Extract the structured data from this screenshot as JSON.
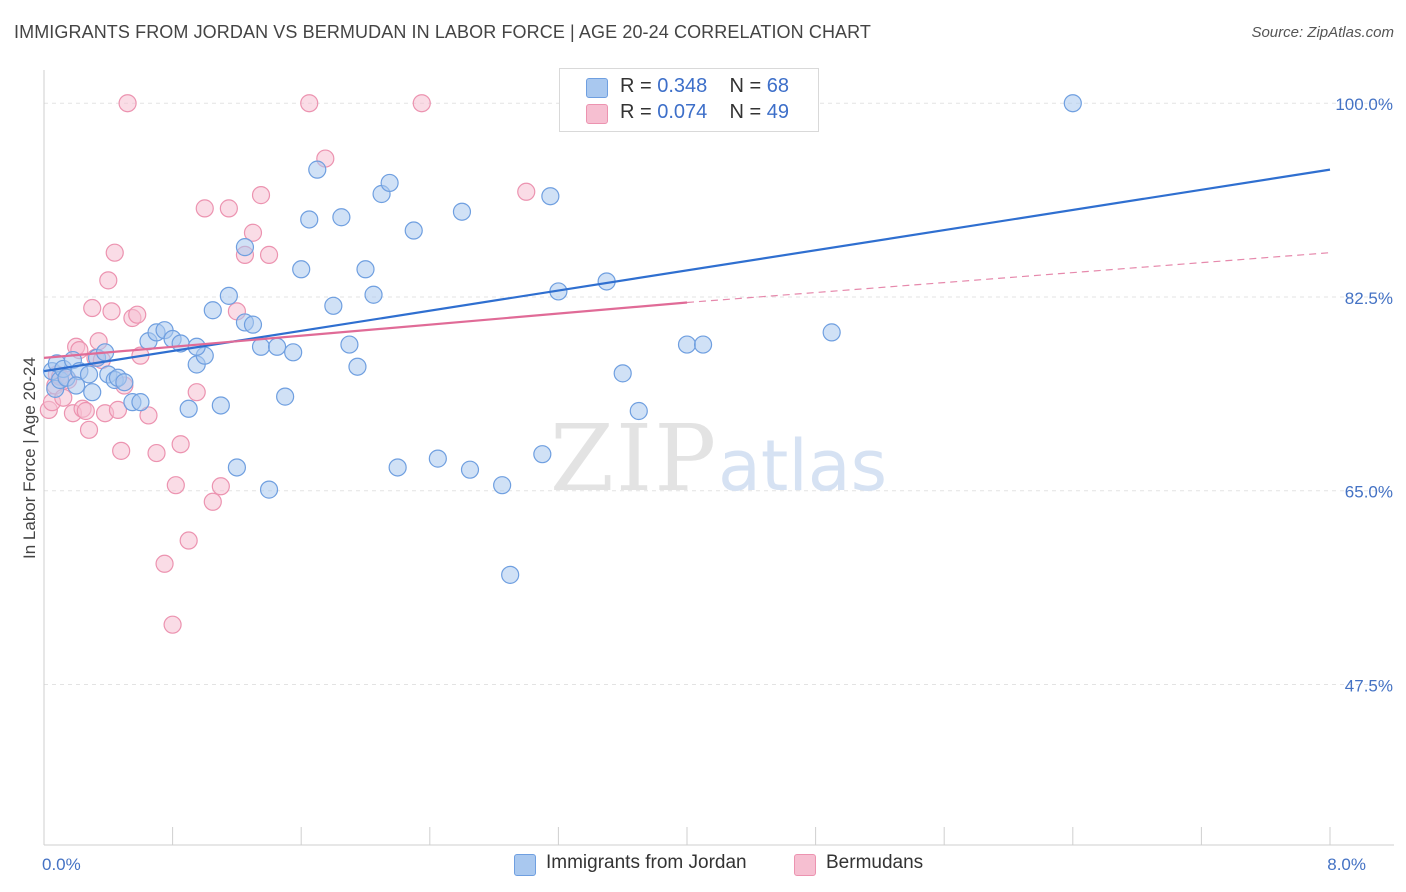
{
  "title": "IMMIGRANTS FROM JORDAN VS BERMUDAN IN LABOR FORCE | AGE 20-24 CORRELATION CHART",
  "source": "Source: ZipAtlas.com",
  "watermark": {
    "zip": "ZIP",
    "atlas": "atlas"
  },
  "legend_top": {
    "rows": [
      {
        "r_label": "R = ",
        "r_value": "0.348",
        "n_label": "N = ",
        "n_value": "68"
      },
      {
        "r_label": "R = ",
        "r_value": "0.074",
        "n_label": "N = ",
        "n_value": "49"
      }
    ]
  },
  "legend_bottom": [
    "Immigrants from Jordan",
    "Bermudans"
  ],
  "colors": {
    "jordan_fill": "#a9c8ef",
    "jordan_stroke": "#6f9fe0",
    "jordan_line": "#2f6fd0",
    "bermudan_fill": "#f6bfd1",
    "bermudan_stroke": "#ec93b0",
    "bermudan_line": "#e06b97",
    "grid": "#e3e3e3",
    "axis_text": "#4472c4"
  },
  "chart_data": {
    "type": "scatter",
    "xlabel": "",
    "ylabel": "In Labor Force | Age 20-24",
    "xlim": [
      0.0,
      8.0
    ],
    "ylim": [
      33.0,
      103.0
    ],
    "x_tick_labels": [
      "0.0%",
      "8.0%"
    ],
    "x_tick_values": [
      0.0,
      8.0
    ],
    "y_ticks": [
      100.0,
      82.5,
      65.0,
      47.5
    ],
    "y_tick_labels": [
      "100.0%",
      "82.5%",
      "65.0%",
      "47.5%"
    ],
    "series": [
      {
        "name": "Immigrants from Jordan",
        "r": 0.348,
        "n": 68,
        "trend": {
          "x0": 0.0,
          "y0": 75.8,
          "x1": 8.0,
          "y1": 94.0
        },
        "points": [
          [
            0.05,
            75.8
          ],
          [
            0.07,
            74.2
          ],
          [
            0.08,
            76.5
          ],
          [
            0.1,
            75.0
          ],
          [
            0.12,
            76.0
          ],
          [
            0.14,
            75.2
          ],
          [
            0.18,
            76.8
          ],
          [
            0.22,
            75.8
          ],
          [
            0.28,
            75.5
          ],
          [
            0.33,
            77.0
          ],
          [
            0.38,
            77.5
          ],
          [
            0.4,
            75.5
          ],
          [
            0.44,
            75.0
          ],
          [
            0.46,
            75.2
          ],
          [
            0.5,
            74.8
          ],
          [
            0.55,
            73.0
          ],
          [
            0.6,
            73.0
          ],
          [
            0.65,
            78.5
          ],
          [
            0.7,
            79.3
          ],
          [
            0.75,
            79.5
          ],
          [
            0.8,
            78.7
          ],
          [
            0.85,
            78.3
          ],
          [
            0.9,
            72.4
          ],
          [
            0.95,
            76.4
          ],
          [
            1.0,
            77.2
          ],
          [
            1.05,
            81.3
          ],
          [
            1.1,
            72.7
          ],
          [
            1.15,
            82.6
          ],
          [
            1.2,
            67.1
          ],
          [
            1.25,
            80.2
          ],
          [
            1.3,
            80.0
          ],
          [
            1.35,
            78.0
          ],
          [
            1.4,
            65.1
          ],
          [
            1.45,
            78.0
          ],
          [
            1.5,
            73.5
          ],
          [
            1.55,
            77.5
          ],
          [
            1.6,
            85.0
          ],
          [
            1.65,
            89.5
          ],
          [
            1.7,
            94.0
          ],
          [
            1.8,
            81.7
          ],
          [
            1.85,
            89.7
          ],
          [
            1.9,
            78.2
          ],
          [
            1.95,
            76.2
          ],
          [
            2.0,
            85.0
          ],
          [
            2.05,
            82.7
          ],
          [
            2.1,
            91.8
          ],
          [
            2.15,
            92.8
          ],
          [
            2.2,
            67.1
          ],
          [
            2.3,
            88.5
          ],
          [
            2.45,
            67.9
          ],
          [
            2.6,
            90.2
          ],
          [
            2.65,
            66.9
          ],
          [
            2.85,
            65.5
          ],
          [
            2.9,
            57.4
          ],
          [
            3.1,
            68.3
          ],
          [
            3.15,
            91.6
          ],
          [
            3.2,
            83.0
          ],
          [
            3.5,
            83.9
          ],
          [
            3.6,
            75.6
          ],
          [
            3.7,
            72.2
          ],
          [
            4.0,
            78.2
          ],
          [
            4.1,
            78.2
          ],
          [
            4.9,
            79.3
          ],
          [
            6.4,
            100.0
          ],
          [
            0.3,
            73.9
          ],
          [
            0.2,
            74.5
          ],
          [
            0.95,
            78.0
          ],
          [
            1.25,
            87.0
          ]
        ]
      },
      {
        "name": "Bermudans",
        "r": 0.074,
        "n": 49,
        "trend": {
          "x0": 0.0,
          "y0": 77.0,
          "x1": 4.0,
          "y1": 82.0,
          "dash_to_x": 8.0,
          "dash_to_y": 86.5
        },
        "points": [
          [
            0.03,
            72.3
          ],
          [
            0.05,
            73.0
          ],
          [
            0.07,
            74.5
          ],
          [
            0.08,
            75.5
          ],
          [
            0.1,
            75.3
          ],
          [
            0.12,
            73.4
          ],
          [
            0.15,
            75.0
          ],
          [
            0.18,
            72.0
          ],
          [
            0.2,
            78.0
          ],
          [
            0.22,
            77.7
          ],
          [
            0.24,
            72.4
          ],
          [
            0.26,
            72.2
          ],
          [
            0.28,
            70.5
          ],
          [
            0.3,
            81.5
          ],
          [
            0.32,
            77.0
          ],
          [
            0.34,
            78.5
          ],
          [
            0.36,
            76.8
          ],
          [
            0.38,
            72.0
          ],
          [
            0.4,
            84.0
          ],
          [
            0.42,
            81.2
          ],
          [
            0.44,
            86.5
          ],
          [
            0.46,
            72.3
          ],
          [
            0.48,
            68.6
          ],
          [
            0.5,
            74.5
          ],
          [
            0.52,
            100.0
          ],
          [
            0.55,
            80.6
          ],
          [
            0.58,
            80.9
          ],
          [
            0.6,
            77.2
          ],
          [
            0.65,
            71.8
          ],
          [
            0.7,
            68.4
          ],
          [
            0.75,
            58.4
          ],
          [
            0.8,
            52.9
          ],
          [
            0.82,
            65.5
          ],
          [
            0.85,
            69.2
          ],
          [
            0.9,
            60.5
          ],
          [
            0.95,
            73.9
          ],
          [
            1.0,
            90.5
          ],
          [
            1.05,
            64.0
          ],
          [
            1.1,
            65.4
          ],
          [
            1.15,
            90.5
          ],
          [
            1.2,
            81.2
          ],
          [
            1.25,
            86.3
          ],
          [
            1.3,
            88.3
          ],
          [
            1.35,
            91.7
          ],
          [
            1.4,
            86.3
          ],
          [
            1.65,
            100.0
          ],
          [
            1.75,
            95.0
          ],
          [
            2.35,
            100.0
          ],
          [
            3.0,
            92.0
          ]
        ]
      }
    ]
  }
}
